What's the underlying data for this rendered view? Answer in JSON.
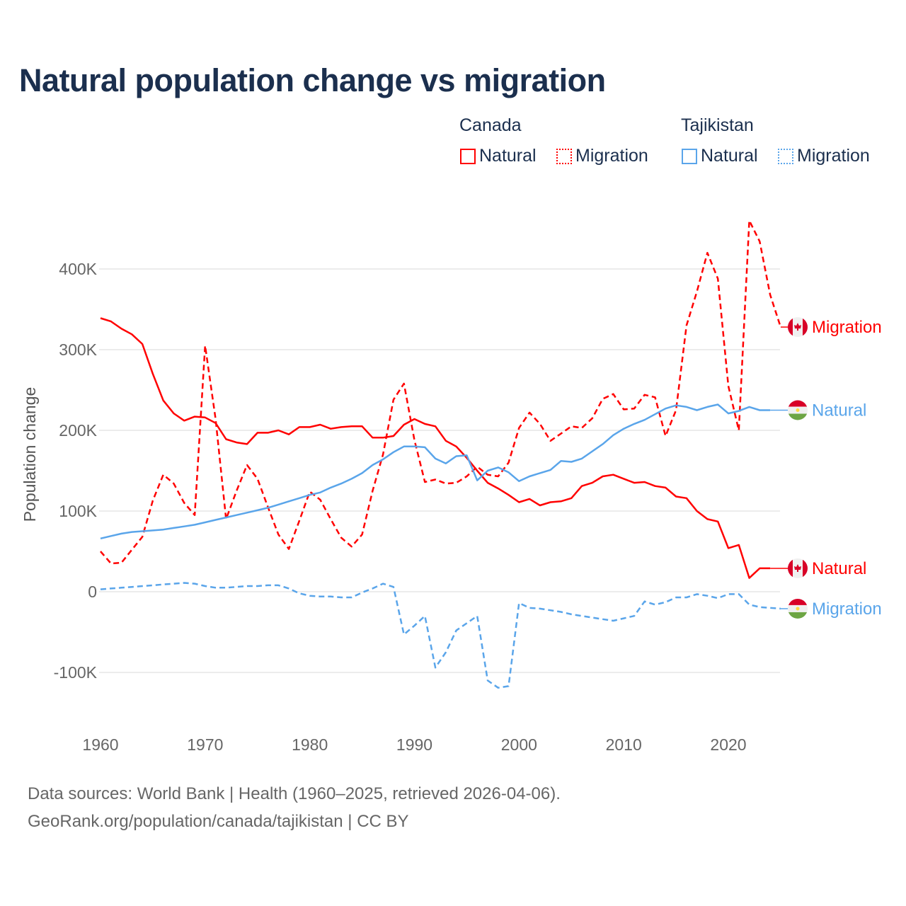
{
  "title": "Natural population change vs migration",
  "legend": {
    "groups": [
      {
        "name": "Canada",
        "items": [
          "Natural",
          "Migration"
        ]
      },
      {
        "name": "Tajikistan",
        "items": [
          "Natural",
          "Migration"
        ]
      }
    ]
  },
  "colors": {
    "canada": "#ff0000",
    "tajikistan": "#5aa5ea"
  },
  "footer": {
    "line1": "Data sources: World Bank | Health (1960–2025, retrieved 2026-04-06).",
    "line2": "GeoRank.org/population/canada/tajikistan | CC BY"
  },
  "chart_data": {
    "type": "line",
    "title": "Natural population change vs migration",
    "xlabel": "",
    "ylabel": "Population change",
    "xlim": [
      1960,
      2025
    ],
    "ylim": [
      -150000,
      470000
    ],
    "x_ticks": [
      1960,
      1970,
      1980,
      1990,
      2000,
      2010,
      2020
    ],
    "x_tick_labels": [
      "1960",
      "1970",
      "1980",
      "1990",
      "2000",
      "2010",
      "2020"
    ],
    "y_ticks": [
      -100000,
      0,
      100000,
      200000,
      300000,
      400000
    ],
    "y_tick_labels": [
      "-100K",
      "0",
      "100K",
      "200K",
      "300K",
      "400K"
    ],
    "grid": true,
    "legend_position": "top-right",
    "series": [
      {
        "name": "Canada Natural",
        "label": "Natural",
        "country": "Canada",
        "style": "solid",
        "color": "#ff0000",
        "start_year": 1960,
        "values": [
          339,
          335,
          326,
          319,
          307,
          270,
          237,
          221,
          212,
          217,
          216,
          209,
          189,
          185,
          183,
          197,
          197,
          200,
          195,
          204,
          204,
          207,
          202,
          204,
          205,
          205,
          191,
          191,
          193,
          207,
          214,
          208,
          205,
          187,
          180,
          166,
          150,
          135,
          128,
          120,
          111,
          115,
          107,
          111,
          112,
          116,
          131,
          135,
          143,
          145,
          140,
          135,
          136,
          131,
          129,
          118,
          116,
          100,
          90,
          87,
          54,
          58,
          17,
          29,
          29
        ]
      },
      {
        "name": "Canada Migration",
        "label": "Migration",
        "country": "Canada",
        "style": "dashed",
        "color": "#ff0000",
        "start_year": 1960,
        "values": [
          50,
          35,
          36,
          52,
          68,
          113,
          145,
          134,
          110,
          95,
          305,
          214,
          90,
          125,
          157,
          140,
          105,
          71,
          53,
          88,
          124,
          114,
          90,
          67,
          56,
          71,
          125,
          170,
          238,
          258,
          188,
          136,
          139,
          134,
          135,
          143,
          155,
          145,
          143,
          160,
          203,
          222,
          208,
          187,
          196,
          205,
          203,
          215,
          239,
          245,
          226,
          227,
          244,
          241,
          193,
          225,
          330,
          372,
          420,
          388,
          255,
          200,
          460,
          434,
          368,
          328
        ]
      },
      {
        "name": "Tajikistan Natural",
        "label": "Natural",
        "country": "Tajikistan",
        "style": "solid",
        "color": "#5aa5ea",
        "start_year": 1960,
        "values": [
          66,
          69,
          72,
          74,
          75,
          76,
          77,
          79,
          81,
          83,
          86,
          89,
          92,
          95,
          98,
          101,
          104,
          108,
          112,
          116,
          120,
          123,
          129,
          134,
          140,
          147,
          157,
          164,
          173,
          180,
          180,
          179,
          165,
          159,
          168,
          169,
          138,
          150,
          154,
          148,
          137,
          143,
          147,
          151,
          162,
          161,
          165,
          174,
          183,
          194,
          202,
          208,
          213,
          220,
          227,
          231,
          229,
          225,
          229,
          232,
          221,
          224,
          229,
          225,
          225
        ]
      },
      {
        "name": "Tajikistan Migration",
        "label": "Migration",
        "country": "Tajikistan",
        "style": "dashed",
        "color": "#5aa5ea",
        "start_year": 1960,
        "values": [
          3,
          4,
          5,
          6,
          7,
          8,
          9,
          10,
          11,
          10,
          7,
          5,
          5,
          6,
          7,
          7,
          8,
          8,
          4,
          -2,
          -5,
          -6,
          -6,
          -7,
          -7,
          -1,
          4,
          10,
          6,
          -53,
          -42,
          -30,
          -94,
          -75,
          -48,
          -39,
          -30,
          -110,
          -119,
          -117,
          -14,
          -20,
          -21,
          -23,
          -25,
          -28,
          -30,
          -32,
          -34,
          -36,
          -33,
          -30,
          -12,
          -16,
          -13,
          -7,
          -7,
          -3,
          -5,
          -8,
          -3,
          -3,
          -16,
          -19,
          -20,
          -21
        ]
      }
    ],
    "value_units": "thousands"
  }
}
